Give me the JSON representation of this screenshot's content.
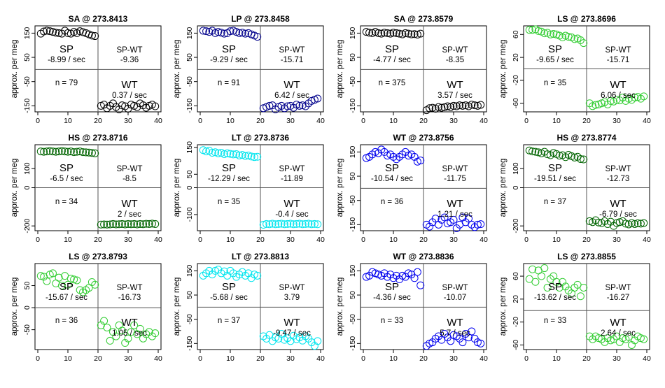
{
  "figure": {
    "ylabel": "approx. per meg",
    "labels": {
      "sp": "SP",
      "wt": "WT",
      "spwt": "SP-WT"
    }
  },
  "chart_data": [
    {
      "type": "scatter",
      "title": "SA @ 273.8413",
      "color": "#000000",
      "ylim": [
        -175,
        180
      ],
      "yticks": [
        -150,
        -50,
        50,
        150
      ],
      "sp_rate": "-8.99 / sec",
      "wt_rate": "0.37 / sec",
      "spwt": "-9.36",
      "n": "n = 79",
      "x": [
        1,
        2,
        3,
        4,
        5,
        6,
        7,
        8,
        9,
        10,
        11,
        12,
        13,
        14,
        15,
        16,
        17,
        18,
        19,
        21,
        22,
        23,
        24,
        25,
        26,
        27,
        28,
        29,
        30,
        31,
        32,
        33,
        34,
        35,
        36,
        37,
        38,
        39
      ],
      "y": [
        148,
        157,
        160,
        158,
        155,
        152,
        150,
        148,
        160,
        150,
        148,
        155,
        150,
        158,
        154,
        150,
        145,
        140,
        138,
        -150,
        -145,
        -160,
        -150,
        -140,
        -155,
        -165,
        -148,
        -152,
        -162,
        -145,
        -150,
        -155,
        -140,
        -148,
        -158,
        -150,
        -145,
        -152
      ]
    },
    {
      "type": "scatter",
      "title": "LP @ 273.8458",
      "color": "#00008b",
      "ylim": [
        -175,
        180
      ],
      "yticks": [
        -150,
        -50,
        50,
        150
      ],
      "sp_rate": "-9.29 / sec",
      "wt_rate": "6.42 / sec",
      "spwt": "-15.71",
      "n": "n = 91",
      "x": [
        1,
        2,
        3,
        4,
        5,
        6,
        7,
        8,
        9,
        10,
        11,
        12,
        13,
        14,
        15,
        16,
        17,
        18,
        19,
        21,
        22,
        23,
        24,
        25,
        26,
        27,
        28,
        29,
        30,
        31,
        32,
        33,
        34,
        35,
        36,
        37,
        38,
        39
      ],
      "y": [
        160,
        158,
        155,
        160,
        150,
        155,
        152,
        148,
        150,
        158,
        160,
        155,
        150,
        152,
        148,
        150,
        145,
        140,
        135,
        -160,
        -155,
        -150,
        -148,
        -165,
        -155,
        -150,
        -160,
        -152,
        -150,
        -158,
        -145,
        -150,
        -148,
        -152,
        -140,
        -130,
        -125,
        -120
      ]
    },
    {
      "type": "scatter",
      "title": "SA @ 273.8579",
      "color": "#000000",
      "ylim": [
        -175,
        180
      ],
      "yticks": [
        -150,
        -50,
        50,
        150
      ],
      "sp_rate": "-4.77 / sec",
      "wt_rate": "3.57 / sec",
      "spwt": "-8.35",
      "n": "n = 375",
      "x": [
        1,
        2,
        3,
        4,
        5,
        6,
        7,
        8,
        9,
        10,
        11,
        12,
        13,
        14,
        15,
        16,
        17,
        18,
        19,
        21,
        22,
        23,
        24,
        25,
        26,
        27,
        28,
        29,
        30,
        31,
        32,
        33,
        34,
        35,
        36,
        37,
        38,
        39
      ],
      "y": [
        155,
        152,
        150,
        155,
        150,
        148,
        152,
        150,
        148,
        152,
        150,
        148,
        145,
        150,
        148,
        145,
        146,
        144,
        148,
        -168,
        -160,
        -158,
        -162,
        -155,
        -158,
        -156,
        -152,
        -155,
        -150,
        -152,
        -148,
        -150,
        -148,
        -152,
        -145,
        -148,
        -150,
        -146
      ]
    },
    {
      "type": "scatter",
      "title": "LS @ 273.8696",
      "color": "#32cd32",
      "ylim": [
        -75,
        75
      ],
      "yticks": [
        -60,
        -20,
        20,
        60
      ],
      "sp_rate": "-9.65 / sec",
      "wt_rate": "6.06 / sec",
      "spwt": "-15.71",
      "n": "n = 35",
      "x": [
        1,
        2,
        3,
        4,
        5,
        6,
        7,
        8,
        9,
        10,
        11,
        12,
        13,
        14,
        15,
        16,
        17,
        18,
        19,
        21,
        22,
        23,
        24,
        25,
        26,
        27,
        28,
        29,
        30,
        31,
        32,
        33,
        34,
        35,
        36,
        37,
        38,
        39
      ],
      "y": [
        68,
        68,
        69,
        66,
        65,
        62,
        63,
        60,
        61,
        60,
        58,
        55,
        58,
        56,
        55,
        52,
        53,
        50,
        45,
        -60,
        -65,
        -63,
        -62,
        -60,
        -58,
        -62,
        -56,
        -57,
        -54,
        -55,
        -50,
        -56,
        -52,
        -54,
        -50,
        -49,
        -52,
        -48
      ]
    },
    {
      "type": "scatter",
      "title": "HS @ 273.8716",
      "color": "#006400",
      "ylim": [
        -225,
        225
      ],
      "yticks": [
        -200,
        0,
        100
      ],
      "sp_rate": "-6.5 / sec",
      "wt_rate": "2 / sec",
      "spwt": "-8.5",
      "n": "n = 34",
      "x": [
        1,
        2,
        3,
        4,
        5,
        6,
        7,
        8,
        9,
        10,
        11,
        12,
        13,
        14,
        15,
        16,
        17,
        18,
        19,
        21,
        22,
        23,
        24,
        25,
        26,
        27,
        28,
        29,
        30,
        31,
        32,
        33,
        34,
        35,
        36,
        37,
        38,
        39
      ],
      "y": [
        190,
        188,
        190,
        192,
        190,
        188,
        190,
        192,
        190,
        188,
        190,
        186,
        188,
        190,
        186,
        185,
        184,
        182,
        180,
        -193,
        -192,
        -193,
        -192,
        -190,
        -192,
        -191,
        -190,
        -192,
        -190,
        -191,
        -190,
        -192,
        -190,
        -191,
        -189,
        -190,
        -188,
        -190
      ]
    },
    {
      "type": "scatter",
      "title": "LT @ 273.8736",
      "color": "#00e5ee",
      "ylim": [
        -160,
        160
      ],
      "yticks": [
        -100,
        0,
        50,
        150
      ],
      "sp_rate": "-12.29 / sec",
      "wt_rate": "-0.4 / sec",
      "spwt": "-11.89",
      "n": "n = 35",
      "x": [
        1,
        2,
        3,
        4,
        5,
        6,
        7,
        8,
        9,
        10,
        11,
        12,
        13,
        14,
        15,
        16,
        17,
        18,
        19,
        21,
        22,
        23,
        24,
        25,
        26,
        27,
        28,
        29,
        30,
        31,
        32,
        33,
        34,
        35,
        36,
        37,
        38,
        39
      ],
      "y": [
        140,
        135,
        138,
        130,
        132,
        128,
        130,
        125,
        128,
        126,
        124,
        125,
        120,
        122,
        118,
        120,
        116,
        114,
        115,
        -138,
        -135,
        -136,
        -134,
        -136,
        -135,
        -134,
        -136,
        -135,
        -134,
        -136,
        -135,
        -134,
        -136,
        -135,
        -134,
        -136,
        -135,
        -136
      ]
    },
    {
      "type": "scatter",
      "title": "WT @ 273.8756",
      "color": "#0000ee",
      "ylim": [
        -175,
        180
      ],
      "yticks": [
        -150,
        -50,
        50,
        150
      ],
      "sp_rate": "-10.54 / sec",
      "wt_rate": "1.21 / sec",
      "spwt": "-11.75",
      "n": "n = 36",
      "x": [
        1,
        2,
        3,
        4,
        5,
        6,
        7,
        8,
        9,
        10,
        11,
        12,
        13,
        14,
        15,
        16,
        17,
        18,
        19,
        21,
        22,
        23,
        24,
        25,
        26,
        27,
        28,
        29,
        30,
        31,
        32,
        33,
        34,
        35,
        36,
        37,
        38,
        39
      ],
      "y": [
        125,
        130,
        140,
        150,
        145,
        160,
        150,
        135,
        140,
        130,
        120,
        130,
        140,
        150,
        135,
        140,
        130,
        110,
        115,
        -150,
        -158,
        -140,
        -125,
        -150,
        -130,
        -120,
        -145,
        -140,
        -130,
        -165,
        -150,
        -120,
        -140,
        -125,
        -150,
        -160,
        -150,
        -148
      ]
    },
    {
      "type": "scatter",
      "title": "HS @ 273.8774",
      "color": "#006400",
      "ylim": [
        -225,
        225
      ],
      "yticks": [
        -200,
        0,
        100
      ],
      "sp_rate": "-19.51 / sec",
      "wt_rate": "-6.79 / sec",
      "spwt": "-12.73",
      "n": "n = 37",
      "x": [
        1,
        2,
        3,
        4,
        5,
        6,
        7,
        8,
        9,
        10,
        11,
        12,
        13,
        14,
        15,
        16,
        17,
        18,
        19,
        21,
        22,
        23,
        24,
        25,
        26,
        27,
        28,
        29,
        30,
        31,
        32,
        33,
        34,
        35,
        36,
        37,
        38,
        39
      ],
      "y": [
        195,
        190,
        188,
        185,
        180,
        188,
        175,
        170,
        182,
        176,
        168,
        170,
        160,
        172,
        165,
        158,
        162,
        150,
        148,
        -175,
        -180,
        -170,
        -182,
        -185,
        -175,
        -190,
        -178,
        -200,
        -185,
        -180,
        -175,
        -188,
        -192,
        -185,
        -190,
        -186,
        -188,
        -185
      ]
    },
    {
      "type": "scatter",
      "title": "LS @ 273.8793",
      "color": "#32cd32",
      "ylim": [
        -95,
        100
      ],
      "yticks": [
        -50,
        0,
        50
      ],
      "sp_rate": "-15.67 / sec",
      "wt_rate": "1.05 / sec",
      "spwt": "-16.73",
      "n": "n = 36",
      "x": [
        1,
        2,
        3,
        4,
        5,
        6,
        7,
        8,
        9,
        10,
        11,
        12,
        13,
        14,
        15,
        16,
        17,
        18,
        19,
        21,
        22,
        23,
        24,
        25,
        26,
        27,
        28,
        29,
        30,
        31,
        32,
        33,
        34,
        35,
        36,
        37,
        38,
        39
      ],
      "y": [
        72,
        70,
        60,
        75,
        78,
        55,
        68,
        50,
        72,
        52,
        66,
        64,
        62,
        40,
        35,
        40,
        45,
        58,
        52,
        -40,
        -30,
        -45,
        -75,
        -55,
        -65,
        -40,
        -52,
        -80,
        -70,
        -55,
        -40,
        -60,
        -48,
        -70,
        -60,
        -55,
        -65,
        -58
      ]
    },
    {
      "type": "scatter",
      "title": "LT @ 273.8813",
      "color": "#00e5ee",
      "ylim": [
        -175,
        180
      ],
      "yticks": [
        -150,
        -50,
        50,
        150
      ],
      "sp_rate": "-5.68 / sec",
      "wt_rate": "-9.47 / sec",
      "spwt": "3.79",
      "n": "n = 37",
      "x": [
        1,
        2,
        3,
        4,
        5,
        6,
        7,
        8,
        9,
        10,
        11,
        12,
        13,
        14,
        15,
        16,
        17,
        18,
        19,
        21,
        22,
        23,
        24,
        25,
        26,
        27,
        28,
        29,
        30,
        31,
        32,
        33,
        34,
        35,
        36,
        37,
        38,
        39
      ],
      "y": [
        130,
        140,
        150,
        135,
        150,
        155,
        140,
        148,
        130,
        150,
        140,
        125,
        135,
        145,
        130,
        140,
        120,
        135,
        130,
        -120,
        -130,
        -115,
        -140,
        -125,
        -130,
        -110,
        -135,
        -128,
        -140,
        -118,
        -132,
        -125,
        -138,
        -120,
        -130,
        -145,
        -160,
        -140
      ]
    },
    {
      "type": "scatter",
      "title": "WT @ 273.8836",
      "color": "#0000ee",
      "ylim": [
        -175,
        180
      ],
      "yticks": [
        -150,
        -50,
        50,
        150
      ],
      "sp_rate": "-4.36 / sec",
      "wt_rate": "5.7 / sec",
      "spwt": "-10.07",
      "n": "n = 33",
      "x": [
        1,
        2,
        3,
        4,
        5,
        6,
        7,
        8,
        9,
        10,
        11,
        12,
        13,
        14,
        15,
        16,
        17,
        18,
        19,
        21,
        22,
        23,
        24,
        25,
        26,
        27,
        28,
        29,
        30,
        31,
        32,
        33,
        34,
        35,
        36,
        37,
        38,
        39
      ],
      "y": [
        125,
        130,
        145,
        140,
        135,
        130,
        140,
        125,
        135,
        120,
        130,
        115,
        130,
        125,
        140,
        135,
        120,
        145,
        90,
        -160,
        -150,
        -145,
        -130,
        -120,
        -135,
        -110,
        -125,
        -140,
        -115,
        -120,
        -130,
        -145,
        -110,
        -125,
        -100,
        -130,
        -145,
        -150
      ]
    },
    {
      "type": "scatter",
      "title": "LS @ 273.8855",
      "color": "#32cd32",
      "ylim": [
        -68,
        82
      ],
      "yticks": [
        -60,
        -20,
        20,
        60
      ],
      "sp_rate": "-13.62 / sec",
      "wt_rate": "2.64 / sec",
      "spwt": "-16.27",
      "n": "n = 33",
      "x": [
        1,
        2,
        3,
        4,
        5,
        6,
        7,
        8,
        9,
        10,
        11,
        12,
        13,
        14,
        15,
        16,
        17,
        18,
        19,
        21,
        22,
        23,
        24,
        25,
        26,
        27,
        28,
        29,
        30,
        31,
        32,
        33,
        34,
        35,
        36,
        37,
        38,
        39
      ],
      "y": [
        55,
        72,
        50,
        70,
        60,
        74,
        40,
        55,
        60,
        50,
        40,
        50,
        42,
        35,
        30,
        40,
        45,
        25,
        40,
        -45,
        -50,
        -45,
        -48,
        -50,
        -55,
        -48,
        -52,
        -50,
        -45,
        -55,
        -48,
        -50,
        -46,
        -60,
        -52,
        -45,
        -48,
        -50
      ]
    }
  ]
}
